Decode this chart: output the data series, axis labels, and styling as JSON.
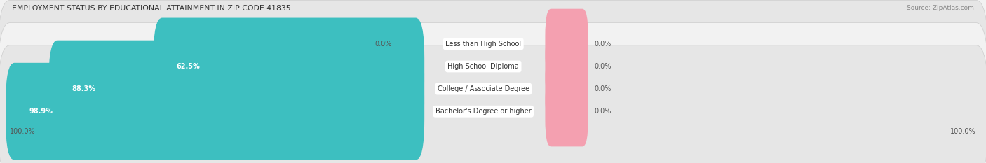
{
  "title": "EMPLOYMENT STATUS BY EDUCATIONAL ATTAINMENT IN ZIP CODE 41835",
  "source": "Source: ZipAtlas.com",
  "categories": [
    "Less than High School",
    "High School Diploma",
    "College / Associate Degree",
    "Bachelor's Degree or higher"
  ],
  "labor_force_values": [
    0.0,
    62.5,
    88.3,
    98.9
  ],
  "unemployed_values": [
    0.0,
    0.0,
    0.0,
    0.0
  ],
  "labor_force_color": "#3dbfc0",
  "unemployed_color": "#f4a0b0",
  "label_left_values": [
    "0.0%",
    "62.5%",
    "88.3%",
    "98.9%"
  ],
  "label_right_values": [
    "0.0%",
    "0.0%",
    "0.0%",
    "0.0%"
  ],
  "x_left_label": "100.0%",
  "x_right_label": "100.0%",
  "row_bg_light": "#f2f2f2",
  "row_bg_dark": "#e6e6e6",
  "figsize": [
    14.06,
    2.33
  ],
  "dpi": 100
}
